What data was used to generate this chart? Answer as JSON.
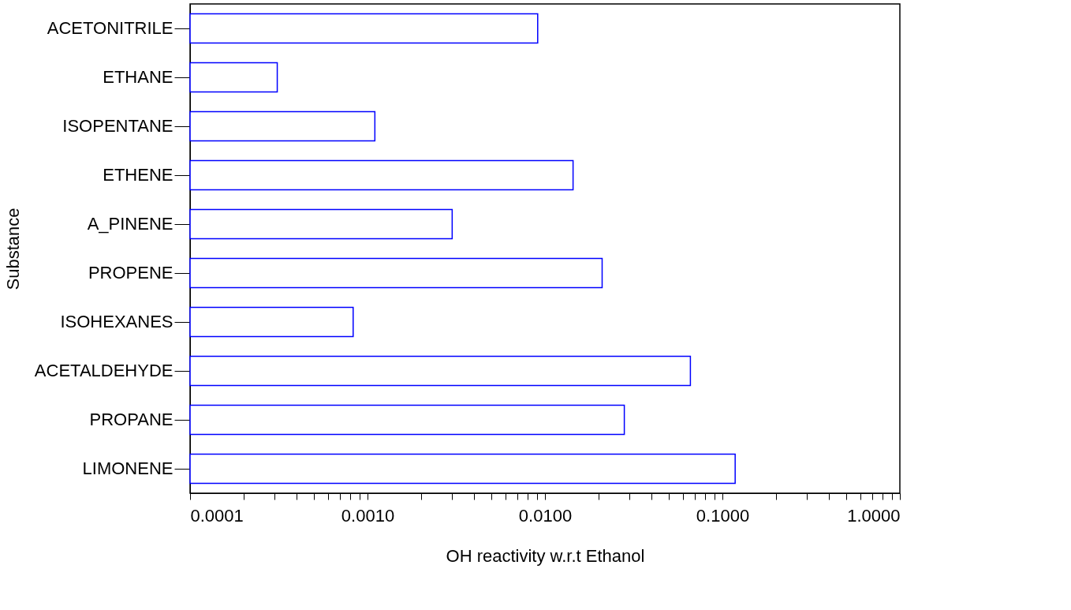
{
  "chart_data": {
    "type": "bar",
    "orientation": "horizontal",
    "log": "x",
    "xlabel": "OH reactivity w.r.t Ethanol",
    "ylabel": "Substance",
    "categories": [
      "ACETONITRILE",
      "ETHANE",
      "ISOPENTANE",
      "ETHENE",
      "A_PINENE",
      "PROPENE",
      "ISOHEXANES",
      "ACETALDEHYDE",
      "PROPANE",
      "LIMONENE"
    ],
    "series": [
      {
        "color": "#0000ff",
        "values": [
          0.0091,
          0.00031,
          0.0011,
          0.0144,
          0.003,
          0.021,
          0.00083,
          0.066,
          0.028,
          0.118
        ]
      }
    ],
    "xlim": [
      0.0001,
      1.0
    ],
    "xticks": [
      {
        "value": 0.0001,
        "label": "0.0001"
      },
      {
        "value": 0.0002,
        "label": null
      },
      {
        "value": 0.0003,
        "label": null
      },
      {
        "value": 0.0004,
        "label": null
      },
      {
        "value": 0.0005,
        "label": null
      },
      {
        "value": 0.0006,
        "label": null
      },
      {
        "value": 0.0007,
        "label": null
      },
      {
        "value": 0.0008,
        "label": null
      },
      {
        "value": 0.0009,
        "label": null
      },
      {
        "value": 0.001,
        "label": "0.0010"
      },
      {
        "value": 0.002,
        "label": null
      },
      {
        "value": 0.003,
        "label": null
      },
      {
        "value": 0.004,
        "label": null
      },
      {
        "value": 0.005,
        "label": null
      },
      {
        "value": 0.006,
        "label": null
      },
      {
        "value": 0.007,
        "label": null
      },
      {
        "value": 0.008,
        "label": null
      },
      {
        "value": 0.009,
        "label": null
      },
      {
        "value": 0.01,
        "label": "0.0100"
      },
      {
        "value": 0.02,
        "label": null
      },
      {
        "value": 0.03,
        "label": null
      },
      {
        "value": 0.04,
        "label": null
      },
      {
        "value": 0.05,
        "label": null
      },
      {
        "value": 0.06,
        "label": null
      },
      {
        "value": 0.07,
        "label": null
      },
      {
        "value": 0.08,
        "label": null
      },
      {
        "value": 0.09,
        "label": null
      },
      {
        "value": 0.1,
        "label": "0.1000"
      },
      {
        "value": 0.2,
        "label": null
      },
      {
        "value": 0.3,
        "label": null
      },
      {
        "value": 0.4,
        "label": null
      },
      {
        "value": 0.5,
        "label": null
      },
      {
        "value": 0.6,
        "label": null
      },
      {
        "value": 0.7,
        "label": null
      },
      {
        "value": 0.8,
        "label": null
      },
      {
        "value": 0.9,
        "label": null
      },
      {
        "value": 1.0,
        "label": "1.0000"
      }
    ]
  }
}
